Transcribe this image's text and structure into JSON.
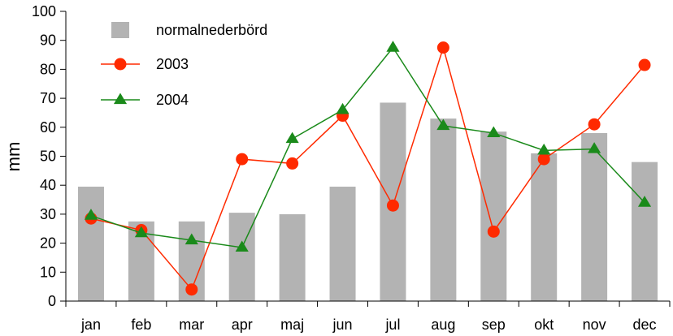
{
  "chart_data": {
    "type": "bar",
    "categories": [
      "jan",
      "feb",
      "mar",
      "apr",
      "maj",
      "jun",
      "jul",
      "aug",
      "sep",
      "okt",
      "nov",
      "dec"
    ],
    "ylabel": "mm",
    "ylim": [
      0,
      100
    ],
    "yticks": [
      0,
      10,
      20,
      30,
      40,
      50,
      60,
      70,
      80,
      90,
      100
    ],
    "grid": false,
    "legend": "top-left",
    "series": [
      {
        "name": "normalnederbörd",
        "type": "bar",
        "color": "#b3b3b3",
        "values": [
          39.5,
          27.5,
          27.5,
          30.5,
          30,
          39.5,
          68.5,
          63,
          58.5,
          51,
          58,
          48
        ]
      },
      {
        "name": "2003",
        "type": "line",
        "marker": "circle",
        "color": "#ff2a00",
        "values": [
          28.5,
          24.5,
          4,
          49,
          47.5,
          64,
          33,
          87.5,
          24,
          49,
          61,
          81.5
        ]
      },
      {
        "name": "2004",
        "type": "line",
        "marker": "triangle",
        "color": "#1a8a1a",
        "values": [
          29.5,
          23.5,
          21,
          18.5,
          56,
          66,
          87.5,
          60.5,
          58,
          52,
          52.5,
          34
        ]
      }
    ]
  }
}
